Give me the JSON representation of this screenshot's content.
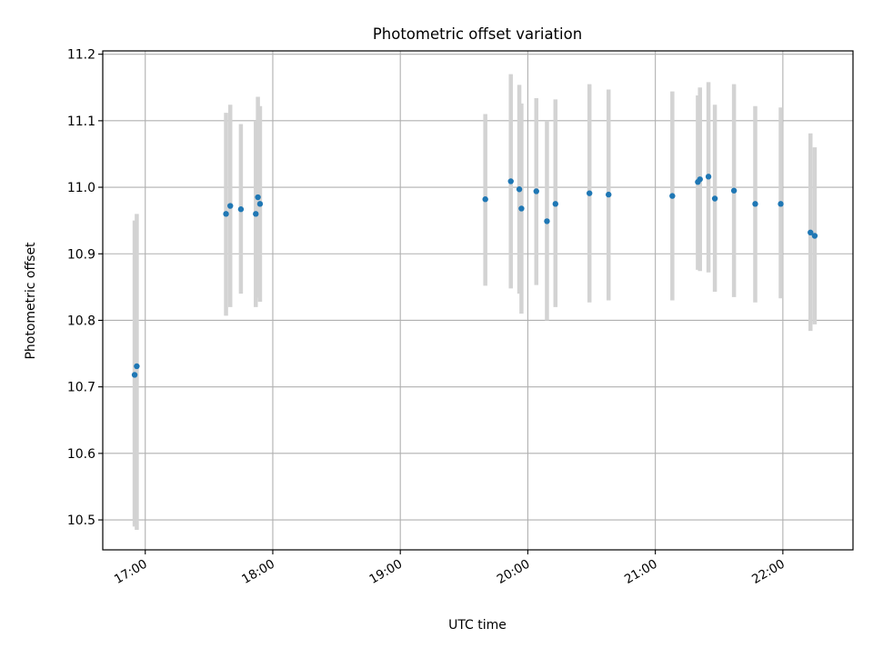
{
  "colors": {
    "point": "#1f77b4",
    "errorbar": "#d3d3d3",
    "grid": "#b0b0b0",
    "axis": "#000000"
  },
  "chart_data": {
    "type": "scatter",
    "title": "Photometric offset variation",
    "xlabel": "UTC time",
    "ylabel": "Photometric offset",
    "x_format": "HH:MM",
    "xlim": [
      "16:40",
      "22:33"
    ],
    "ylim": [
      10.455,
      11.205
    ],
    "xticks": [
      "17:00",
      "18:00",
      "19:00",
      "20:00",
      "21:00",
      "22:00"
    ],
    "yticks": [
      "10.5",
      "10.6",
      "10.7",
      "10.8",
      "10.9",
      "11.0",
      "11.1",
      "11.2"
    ],
    "grid": true,
    "series": [
      {
        "points": [
          {
            "x": "16:55",
            "y": 10.718,
            "ylow": 10.49,
            "yhigh": 10.95
          },
          {
            "x": "16:56",
            "y": 10.731,
            "ylow": 10.485,
            "yhigh": 10.96
          },
          {
            "x": "17:38",
            "y": 10.96,
            "ylow": 10.807,
            "yhigh": 11.112
          },
          {
            "x": "17:40",
            "y": 10.972,
            "ylow": 10.82,
            "yhigh": 11.124
          },
          {
            "x": "17:45",
            "y": 10.967,
            "ylow": 10.84,
            "yhigh": 11.095
          },
          {
            "x": "17:52",
            "y": 10.96,
            "ylow": 10.82,
            "yhigh": 11.1
          },
          {
            "x": "17:53",
            "y": 10.985,
            "ylow": 10.834,
            "yhigh": 11.136
          },
          {
            "x": "17:54",
            "y": 10.975,
            "ylow": 10.828,
            "yhigh": 11.122
          },
          {
            "x": "19:40",
            "y": 10.982,
            "ylow": 10.852,
            "yhigh": 11.11
          },
          {
            "x": "19:52",
            "y": 11.009,
            "ylow": 10.848,
            "yhigh": 11.17
          },
          {
            "x": "19:56",
            "y": 10.997,
            "ylow": 10.84,
            "yhigh": 11.154
          },
          {
            "x": "19:57",
            "y": 10.968,
            "ylow": 10.81,
            "yhigh": 11.126
          },
          {
            "x": "20:04",
            "y": 10.994,
            "ylow": 10.853,
            "yhigh": 11.134
          },
          {
            "x": "20:09",
            "y": 10.949,
            "ylow": 10.8,
            "yhigh": 11.1
          },
          {
            "x": "20:13",
            "y": 10.975,
            "ylow": 10.82,
            "yhigh": 11.132
          },
          {
            "x": "20:29",
            "y": 10.991,
            "ylow": 10.827,
            "yhigh": 11.155
          },
          {
            "x": "20:38",
            "y": 10.989,
            "ylow": 10.83,
            "yhigh": 11.147
          },
          {
            "x": "21:08",
            "y": 10.987,
            "ylow": 10.83,
            "yhigh": 11.144
          },
          {
            "x": "21:20",
            "y": 11.008,
            "ylow": 10.876,
            "yhigh": 11.138
          },
          {
            "x": "21:21",
            "y": 11.012,
            "ylow": 10.874,
            "yhigh": 11.15
          },
          {
            "x": "21:25",
            "y": 11.016,
            "ylow": 10.872,
            "yhigh": 11.158
          },
          {
            "x": "21:28",
            "y": 10.983,
            "ylow": 10.843,
            "yhigh": 11.124
          },
          {
            "x": "21:37",
            "y": 10.995,
            "ylow": 10.835,
            "yhigh": 11.155
          },
          {
            "x": "21:47",
            "y": 10.975,
            "ylow": 10.827,
            "yhigh": 11.122
          },
          {
            "x": "21:59",
            "y": 10.975,
            "ylow": 10.833,
            "yhigh": 11.12
          },
          {
            "x": "22:13",
            "y": 10.932,
            "ylow": 10.784,
            "yhigh": 11.081
          },
          {
            "x": "22:15",
            "y": 10.927,
            "ylow": 10.794,
            "yhigh": 11.06
          }
        ]
      }
    ]
  }
}
